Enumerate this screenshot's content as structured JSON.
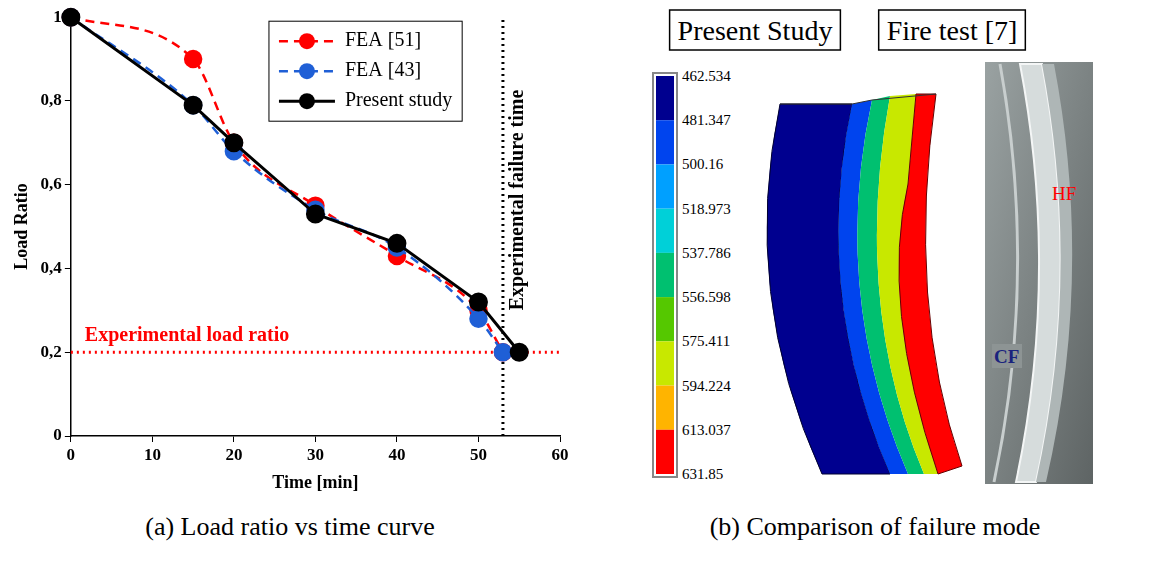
{
  "chart_data": {
    "type": "line",
    "x_label": "Time [min]",
    "y_label": "Load Ratio",
    "xlim": [
      0,
      60
    ],
    "xticks": [
      0,
      10,
      20,
      30,
      40,
      50,
      60
    ],
    "ylim": [
      0,
      1
    ],
    "yticks": [
      0,
      {
        "value": 0.2,
        "label": "0,2"
      },
      {
        "value": 0.4,
        "label": "0,4"
      },
      {
        "value": 0.6,
        "label": "0,6"
      },
      {
        "value": 0.8,
        "label": "0,8"
      },
      1
    ],
    "grid": false,
    "legend": "upper right",
    "marker": "circle",
    "series": [
      {
        "name": "FEA [51]",
        "color": "#ff0000",
        "line_style": "dashed",
        "x": [
          0,
          15,
          20,
          30,
          40,
          50,
          53
        ],
        "values": [
          1,
          0.9,
          0.7,
          0.55,
          0.43,
          0.3,
          0.2
        ]
      },
      {
        "name": "FEA [43]",
        "color": "#1f5fd6",
        "line_style": "dashed",
        "x": [
          0,
          15,
          20,
          30,
          40,
          50,
          53
        ],
        "values": [
          1,
          0.79,
          0.68,
          0.54,
          0.45,
          0.28,
          0.2
        ]
      },
      {
        "name": "Present study",
        "color": "#000000",
        "line_style": "solid",
        "x": [
          0,
          15,
          20,
          30,
          40,
          50,
          55
        ],
        "values": [
          1,
          0.79,
          0.7,
          0.53,
          0.46,
          0.32,
          0.2
        ]
      }
    ],
    "annotations": [
      {
        "text": "Experimental load ratio",
        "y": 0.2,
        "color": "#ff0000",
        "line_style": "dotted"
      },
      {
        "text": "Experimental failure time",
        "x": 53,
        "color": "#000000",
        "line_style": "dotted"
      }
    ]
  },
  "captions": [
    "(a) Load ratio vs time curve",
    "(b) Comparison of failure mode"
  ],
  "failure_mode": {
    "panels": [
      {
        "title": "Present Study",
        "colorbar": {
          "range": [
            462.534,
            631.85
          ],
          "ticks": [
            462.534,
            481.347,
            500.16,
            518.973,
            537.786,
            556.598,
            575.411,
            594.224,
            613.037,
            631.85
          ],
          "colors": [
            "#00008f",
            "#0044ee",
            "#00a0ff",
            "#00d0d8",
            "#00c070",
            "#55c800",
            "#c8e800",
            "#ffb400",
            "#ff0000"
          ]
        }
      },
      {
        "title": "Fire test [7]",
        "labels": [
          {
            "text": "HF",
            "color": "#ff0000"
          },
          {
            "text": "CF",
            "color": "#1a237e"
          }
        ]
      }
    ]
  }
}
